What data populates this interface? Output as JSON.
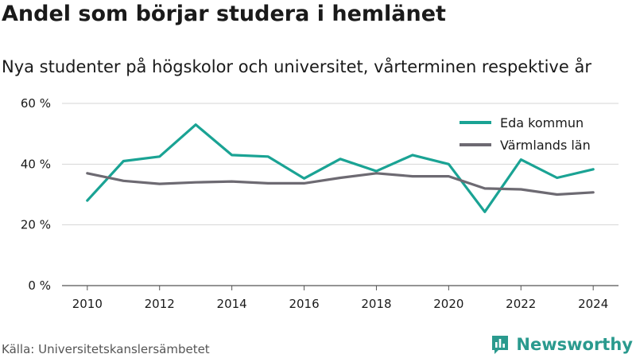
{
  "header": {
    "title": "Andel som börjar studera i hemlänet",
    "subtitle": "Nya studenter på högskolor och universitet, vårterminen respektive år"
  },
  "footer": {
    "source": "Källa: Universitetskanslersämbetet",
    "brand": "Newsworthy"
  },
  "colors": {
    "eda": "#1aa394",
    "varmland": "#6d6a72",
    "grid": "#d6d6d6",
    "brand": "#2a9a8e"
  },
  "chart_data": {
    "type": "line",
    "x": [
      2010,
      2011,
      2012,
      2013,
      2014,
      2015,
      2016,
      2017,
      2018,
      2019,
      2020,
      2021,
      2022,
      2023,
      2024
    ],
    "series": [
      {
        "name": "Eda kommun",
        "color": "#1aa394",
        "values": [
          28,
          41,
          42.5,
          53,
          43,
          42.5,
          35.3,
          41.7,
          37.7,
          43,
          40,
          24.3,
          41.5,
          35.5,
          38.3
        ]
      },
      {
        "name": "Värmlands län",
        "color": "#6d6a72",
        "values": [
          37,
          34.5,
          33.5,
          34,
          34.3,
          33.7,
          33.7,
          35.5,
          37,
          36,
          36,
          32,
          31.7,
          30,
          30.7
        ]
      }
    ],
    "xticks": [
      "2010",
      "2012",
      "2014",
      "2016",
      "2018",
      "2020",
      "2022",
      "2024"
    ],
    "yticks": [
      "0 %",
      "20 %",
      "40 %",
      "60 %"
    ],
    "ylim": [
      0,
      60
    ],
    "xlim": [
      2010,
      2024
    ],
    "grid": true,
    "legend": "top-right"
  }
}
